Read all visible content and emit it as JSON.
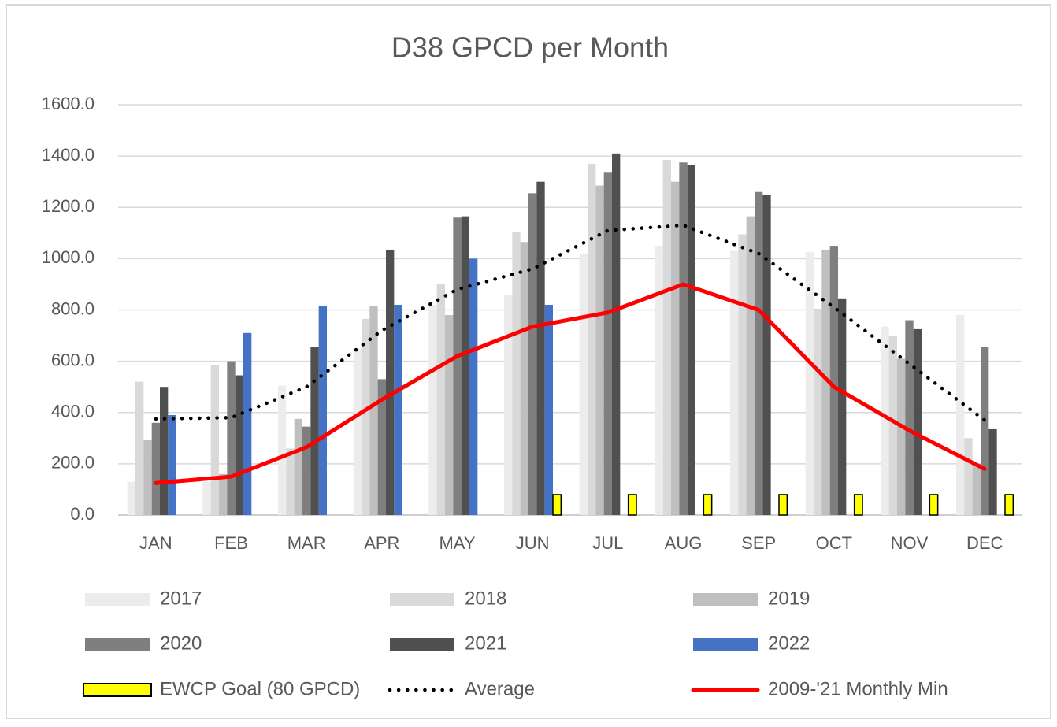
{
  "chart_data": {
    "type": "bar",
    "title": "D38 GPCD per Month",
    "categories": [
      "JAN",
      "FEB",
      "MAR",
      "APR",
      "MAY",
      "JUN",
      "JUL",
      "AUG",
      "SEP",
      "OCT",
      "NOV",
      "DEC"
    ],
    "ylim": [
      0,
      1600
    ],
    "yticks": [
      {
        "value": 0,
        "label": "0.0"
      },
      {
        "value": 200,
        "label": "200.0"
      },
      {
        "value": 400,
        "label": "400.0"
      },
      {
        "value": 600,
        "label": "600.0"
      },
      {
        "value": 800,
        "label": "800.0"
      },
      {
        "value": 1000,
        "label": "1000.0"
      },
      {
        "value": 1200,
        "label": "1200.0"
      },
      {
        "value": 1400,
        "label": "1400.0"
      },
      {
        "value": 1600,
        "label": "1600.0"
      }
    ],
    "grid": true,
    "legend": "bottom",
    "series": [
      {
        "name": "2017",
        "color": "#ececec",
        "kind": "bar",
        "values": [
          130,
          130,
          505,
          650,
          820,
          860,
          1020,
          1050,
          1030,
          1025,
          735,
          780
        ]
      },
      {
        "name": "2018",
        "color": "#d9d9d9",
        "kind": "bar",
        "values": [
          520,
          585,
          260,
          765,
          900,
          1105,
          1370,
          1385,
          1095,
          805,
          700,
          300
        ]
      },
      {
        "name": "2019",
        "color": "#bfbfbf",
        "kind": "bar",
        "values": [
          295,
          160,
          375,
          815,
          780,
          1065,
          1285,
          1300,
          1165,
          1035,
          610,
          200
        ]
      },
      {
        "name": "2020",
        "color": "#7f7f7f",
        "kind": "bar",
        "values": [
          360,
          600,
          345,
          530,
          1160,
          1255,
          1335,
          1375,
          1260,
          1050,
          760,
          655
        ]
      },
      {
        "name": "2021",
        "color": "#505050",
        "kind": "bar",
        "values": [
          500,
          545,
          655,
          1035,
          1165,
          1300,
          1410,
          1365,
          1250,
          845,
          725,
          335
        ]
      },
      {
        "name": "2022",
        "color": "#4472c4",
        "kind": "bar",
        "values": [
          390,
          710,
          815,
          820,
          1000,
          820,
          null,
          null,
          null,
          null,
          null,
          null
        ]
      },
      {
        "name": "EWCP Goal (80 GPCD)",
        "color": "#ffff00",
        "kind": "bar",
        "values": [
          null,
          null,
          null,
          null,
          null,
          80,
          80,
          80,
          80,
          80,
          80,
          80
        ]
      },
      {
        "name": "Average",
        "color": "#000000",
        "kind": "dotted-line",
        "values": [
          375,
          380,
          500,
          720,
          880,
          960,
          1110,
          1130,
          1020,
          810,
          590,
          370
        ]
      },
      {
        "name": "2009-'21 Monthly Min",
        "color": "#ff0000",
        "kind": "line",
        "values": [
          125,
          150,
          265,
          450,
          620,
          735,
          790,
          900,
          800,
          500,
          330,
          180
        ]
      }
    ]
  }
}
